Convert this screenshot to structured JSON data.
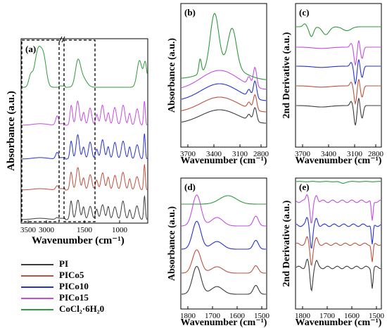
{
  "series_styles": [
    {
      "name": "PI",
      "color": "#3c3c3c"
    },
    {
      "name": "PICo5",
      "color": "#c0503c"
    },
    {
      "name": "PICo10",
      "color": "#2832d2"
    },
    {
      "name": "PICo15",
      "color": "#c34fe0"
    },
    {
      "name": "CoCl₂·6H₂0",
      "color": "#2e9a3c"
    }
  ],
  "chart_data": [
    {
      "type": "line",
      "panel": "(a)",
      "xlabel": "Wavenumber (cm⁻¹)",
      "ylabel": "Absorbance (a.u.)",
      "x_ticks": [
        "3500",
        "3000",
        "1500",
        "1000"
      ],
      "axis_break": "between 3000 and 1500 cm⁻¹",
      "highlighted_regions": [
        "3700–2750 cm⁻¹",
        "1820–1480 cm⁻¹"
      ],
      "series_order_bottom_to_top": [
        "PI",
        "PICo5",
        "PICo10",
        "PICo15",
        "CoCl₂·6H₂0"
      ]
    },
    {
      "type": "line",
      "panel": "(b)",
      "xlabel": "Wavenumber (cm⁻¹)",
      "ylabel": "Absorbance (a.u.)",
      "x_ticks": [
        "3700",
        "3400",
        "3100",
        "2800"
      ],
      "xlim": [
        3750,
        2750
      ],
      "series_order_bottom_to_top": [
        "PI",
        "PICo5",
        "PICo10",
        "PICo15",
        "CoCl₂·6H₂0"
      ]
    },
    {
      "type": "line",
      "panel": "(c)",
      "xlabel": "Wavenumber (cm⁻¹)",
      "ylabel": "2nd Derivative (a.u.)",
      "x_ticks": [
        "3700",
        "3400",
        "3100",
        "2800"
      ],
      "xlim": [
        3750,
        2750
      ],
      "series_order_bottom_to_top": [
        "PI",
        "PICo5",
        "PICo10",
        "PICo15",
        "CoCl₂·6H₂0"
      ]
    },
    {
      "type": "line",
      "panel": "(d)",
      "xlabel": "Wavenumber (cm⁻¹)",
      "ylabel": "Absorbance (a.u.)",
      "x_ticks": [
        "1800",
        "1700",
        "1600",
        "1500"
      ],
      "xlim": [
        1820,
        1480
      ],
      "series_order_bottom_to_top": [
        "PI",
        "PICo5",
        "PICo10",
        "PICo15",
        "CoCl₂·6H₂0"
      ]
    },
    {
      "type": "line",
      "panel": "(e)",
      "xlabel": "Wavenumber (cm⁻¹)",
      "ylabel": "2nd Derivative (a.u.)",
      "x_ticks": [
        "1800",
        "1700",
        "1600",
        "1500"
      ],
      "xlim": [
        1820,
        1480
      ],
      "series_order_bottom_to_top": [
        "PI",
        "PICo5",
        "PICo10",
        "PICo15",
        "CoCl₂·6H₂0"
      ]
    }
  ]
}
